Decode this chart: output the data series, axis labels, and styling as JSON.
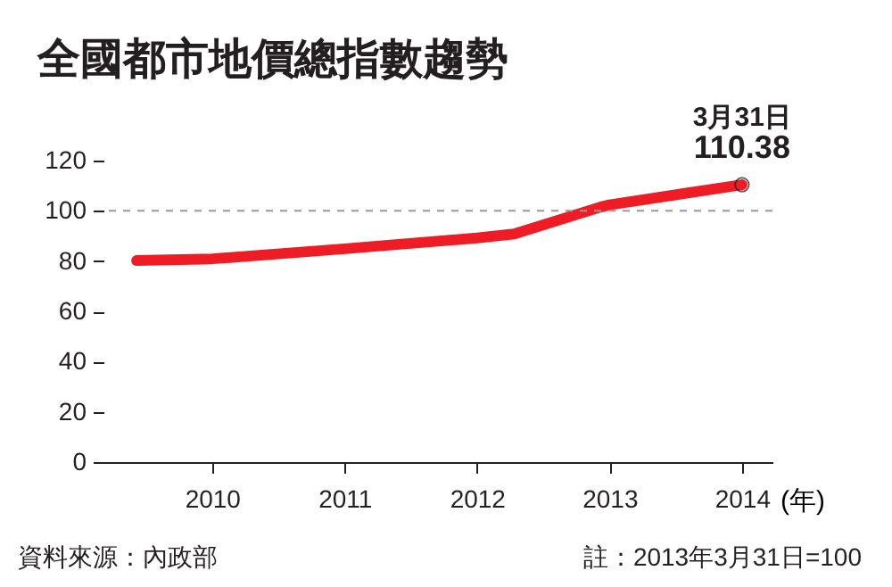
{
  "chart_data": {
    "type": "line",
    "title": "全國都市地價總指數趨勢",
    "xlabel": "(年)",
    "x": [
      2009.43,
      2010,
      2011,
      2012,
      2012.28,
      2012.93,
      2013,
      2014
    ],
    "series": [
      {
        "color": "#ee1c25",
        "values": [
          80.2,
          80.9,
          84.9,
          89.2,
          90.8,
          101.5,
          102.4,
          110.38
        ]
      },
      {
        "type": "scatter",
        "marker": "circle",
        "color": "#231f20",
        "x": [
          2014
        ],
        "values": [
          110.38
        ]
      }
    ],
    "xlim": [
      2009.18,
      2014.23
    ],
    "xticks": [
      2010,
      2011,
      2012,
      2013,
      2014
    ],
    "ylim": [
      0,
      120
    ],
    "yticks": [
      0,
      20,
      40,
      60,
      80,
      100,
      120
    ],
    "ref_lines": [
      {
        "axis": "y",
        "value": 100,
        "color": "#999999",
        "line_style": "dashed"
      }
    ],
    "grid": false,
    "annotations": [
      {
        "text": "3月31日",
        "x": 2014,
        "y": 110.38
      },
      {
        "text": "110.38",
        "x": 2014,
        "y": 110.38
      },
      "資料來源：內政部",
      "註：2013年3月31日=100"
    ]
  }
}
